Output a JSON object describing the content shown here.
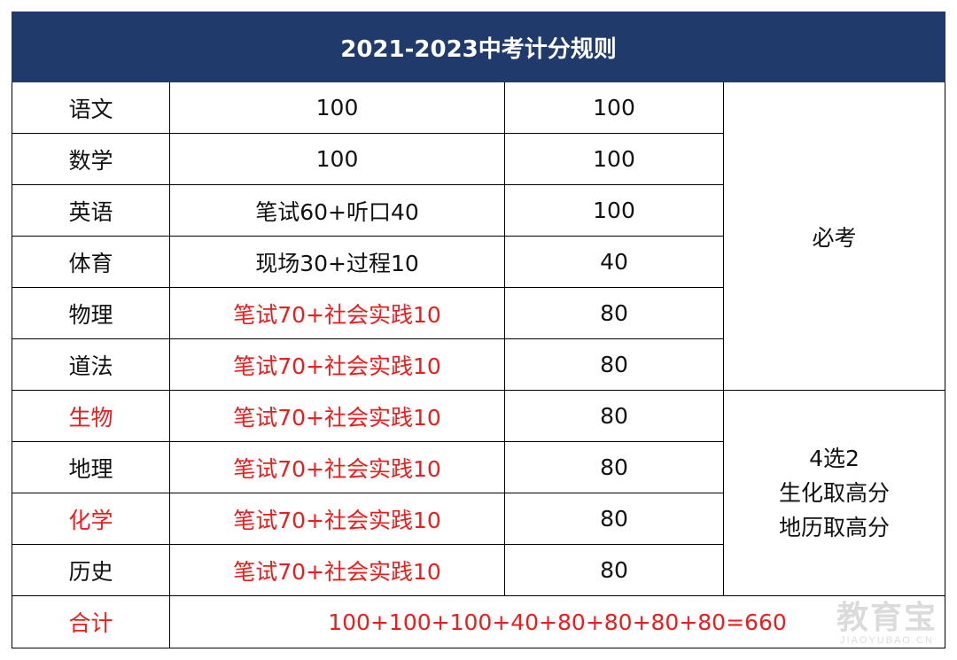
{
  "title": "2021-2023中考计分规则",
  "rows": [
    {
      "subject": "语文",
      "composition": "100",
      "score": "100"
    },
    {
      "subject": "数学",
      "composition": "100",
      "score": "100"
    },
    {
      "subject": "英语",
      "composition": "笔试60+听口40",
      "score": "100"
    },
    {
      "subject": "体育",
      "composition": "现场30+过程10",
      "score": "40"
    },
    {
      "subject": "物理",
      "composition": "笔试70+社会实践10",
      "score": "80"
    },
    {
      "subject": "道法",
      "composition": "笔试70+社会实践10",
      "score": "80"
    },
    {
      "subject": "生物",
      "composition": "笔试70+社会实践10",
      "score": "80"
    },
    {
      "subject": "地理",
      "composition": "笔试70+社会实践10",
      "score": "80"
    },
    {
      "subject": "化学",
      "composition": "笔试70+社会实践10",
      "score": "80"
    },
    {
      "subject": "历史",
      "composition": "笔试70+社会实践10",
      "score": "80"
    }
  ],
  "notes": {
    "required": "必考",
    "elective_line1": "4选2",
    "elective_line2": "生化取高分",
    "elective_line3": "地历取高分"
  },
  "total": {
    "label": "合计",
    "formula": "100+100+100+40+80+80+80+80=660"
  },
  "watermark": {
    "main": "教育宝",
    "sub": "JIAOYUBAO.CN"
  },
  "colors": {
    "header_bg": "#1f3a6b",
    "highlight_red": "#ee1c1c"
  }
}
